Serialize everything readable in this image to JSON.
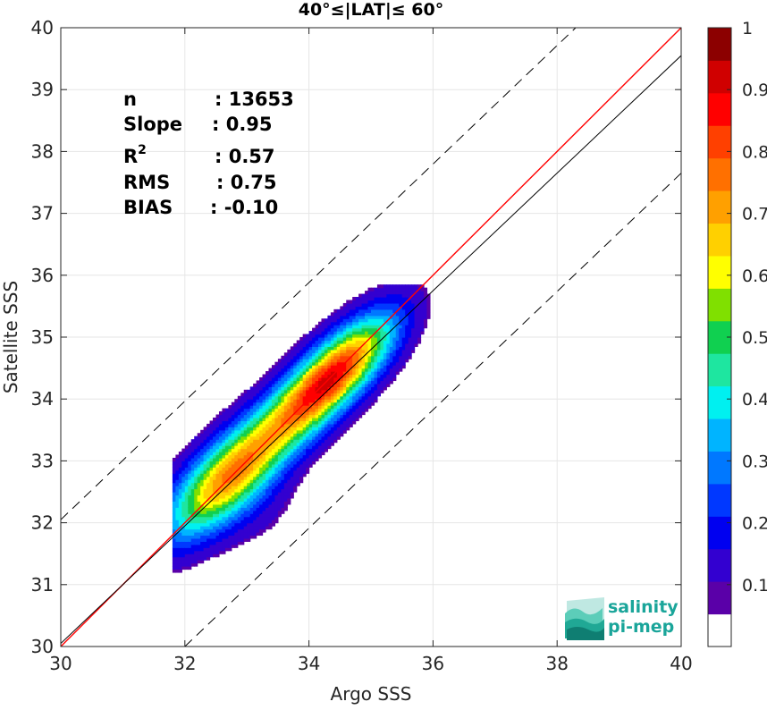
{
  "chart_data": {
    "type": "heatmap",
    "subtype": "filled-contour density scatter",
    "title": "40°≤|LAT|≤ 60°",
    "xlabel": "Argo SSS",
    "ylabel": "Satellite SSS",
    "xlim": [
      30,
      40
    ],
    "ylim": [
      30,
      40
    ],
    "xticks": [
      30,
      32,
      34,
      36,
      38,
      40
    ],
    "yticks": [
      30,
      31,
      32,
      33,
      34,
      35,
      36,
      37,
      38,
      39,
      40
    ],
    "grid": true,
    "colorbar": {
      "range": [
        0,
        1
      ],
      "ticks": [
        0.1,
        0.2,
        0.3,
        0.4,
        0.5,
        0.6,
        0.7,
        0.8,
        0.9,
        1
      ],
      "tick_labels": [
        "0.1",
        "0.2",
        "0.3",
        "0.4",
        "0.5",
        "0.6",
        "0.7",
        "0.8",
        "0.9",
        "1"
      ],
      "colors": [
        "#ffffff",
        "#5a00a8",
        "#3300d0",
        "#0000f0",
        "#0038ff",
        "#0078ff",
        "#00b4ff",
        "#00f0f0",
        "#1ee6a0",
        "#10d050",
        "#80e000",
        "#ffff00",
        "#ffd000",
        "#ffa000",
        "#ff7000",
        "#ff4000",
        "#ff0000",
        "#d00000",
        "#8c0000"
      ]
    },
    "stats": {
      "labels": [
        "n",
        "Slope",
        "R",
        "RMS",
        "BIAS"
      ],
      "values": [
        ": 13653",
        ": 0.95",
        ": 0.57",
        ": 0.75",
        ": -0.10"
      ],
      "r_superscript": "2"
    },
    "lines": [
      {
        "kind": "identity",
        "color": "#ff0000",
        "style": "solid",
        "points": [
          [
            30,
            30
          ],
          [
            40,
            40
          ]
        ]
      },
      {
        "kind": "regression",
        "color": "#000000",
        "style": "solid",
        "points": [
          [
            30,
            30.05
          ],
          [
            40,
            39.55
          ]
        ]
      },
      {
        "kind": "upper-bound",
        "color": "#000000",
        "style": "dashed",
        "points": [
          [
            30,
            32.05
          ],
          [
            38.3,
            40
          ]
        ]
      },
      {
        "kind": "lower-bound",
        "color": "#000000",
        "style": "dashed",
        "points": [
          [
            32,
            30
          ],
          [
            40,
            37.65
          ]
        ]
      }
    ],
    "density_clusters": [
      {
        "center": [
          32.7,
          32.75
        ],
        "peak": 0.72
      },
      {
        "center": [
          34.3,
          34.3
        ],
        "peak": 0.88
      }
    ]
  },
  "logo": {
    "line1": "salinity",
    "line2": "pi-mep",
    "color": "#1aa59a"
  }
}
